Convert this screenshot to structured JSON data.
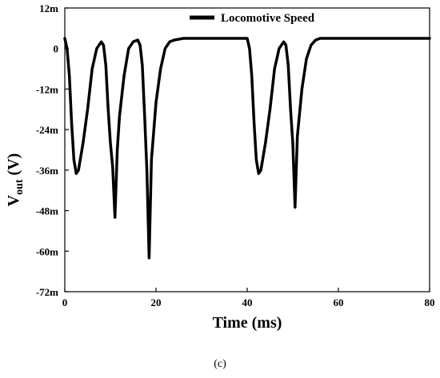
{
  "caption": "(c)",
  "chart_data": {
    "type": "line",
    "xlabel": "Time (ms)",
    "ylabel_main": "V",
    "ylabel_sub": "out",
    "ylabel_unit": " (V)",
    "xlim": [
      0,
      80
    ],
    "ylim": [
      -72,
      12
    ],
    "x_ticks": [
      0,
      20,
      40,
      60,
      80
    ],
    "x_tick_labels": [
      "0",
      "20",
      "40",
      "60",
      "80"
    ],
    "y_ticks": [
      12,
      0,
      -12,
      -24,
      -36,
      -48,
      -60,
      -72
    ],
    "y_tick_labels": [
      "12m",
      "0",
      "-12m",
      "-24m",
      "-36m",
      "-48m",
      "-60m",
      "-72m"
    ],
    "y_unit": "mV",
    "grid": false,
    "legend_position": "top-right",
    "series": [
      {
        "name": "Locomotive Speed",
        "color": "#000000",
        "x": [
          0,
          0.5,
          1,
          1.5,
          2,
          2.5,
          3,
          4,
          5,
          6,
          7,
          8,
          8.5,
          9,
          9.5,
          10,
          10.5,
          11,
          11.5,
          12,
          13,
          14,
          15,
          16,
          16.5,
          17,
          17.5,
          18,
          18.5,
          19,
          20,
          21,
          22,
          23,
          24,
          26,
          30,
          35,
          40,
          40.5,
          41,
          41.5,
          42,
          42.5,
          43,
          44,
          45,
          46,
          47,
          48,
          48.5,
          49,
          49.5,
          50,
          50.5,
          51,
          52,
          53,
          54,
          55,
          56,
          58,
          62,
          70,
          80
        ],
        "y": [
          3,
          0,
          -8,
          -22,
          -33,
          -37,
          -36,
          -28,
          -18,
          -6,
          0,
          2,
          1,
          -5,
          -18,
          -28,
          -35,
          -50,
          -30,
          -20,
          -8,
          0,
          2,
          2.5,
          1,
          -5,
          -20,
          -36,
          -62,
          -33,
          -16,
          -6,
          0,
          2,
          2.5,
          3,
          3,
          3,
          3,
          0,
          -8,
          -22,
          -33,
          -37,
          -36,
          -28,
          -18,
          -6,
          0,
          2,
          1,
          -5,
          -18,
          -28,
          -47,
          -26,
          -12,
          -3,
          1,
          2.5,
          3,
          3,
          3,
          3,
          3
        ]
      }
    ]
  }
}
